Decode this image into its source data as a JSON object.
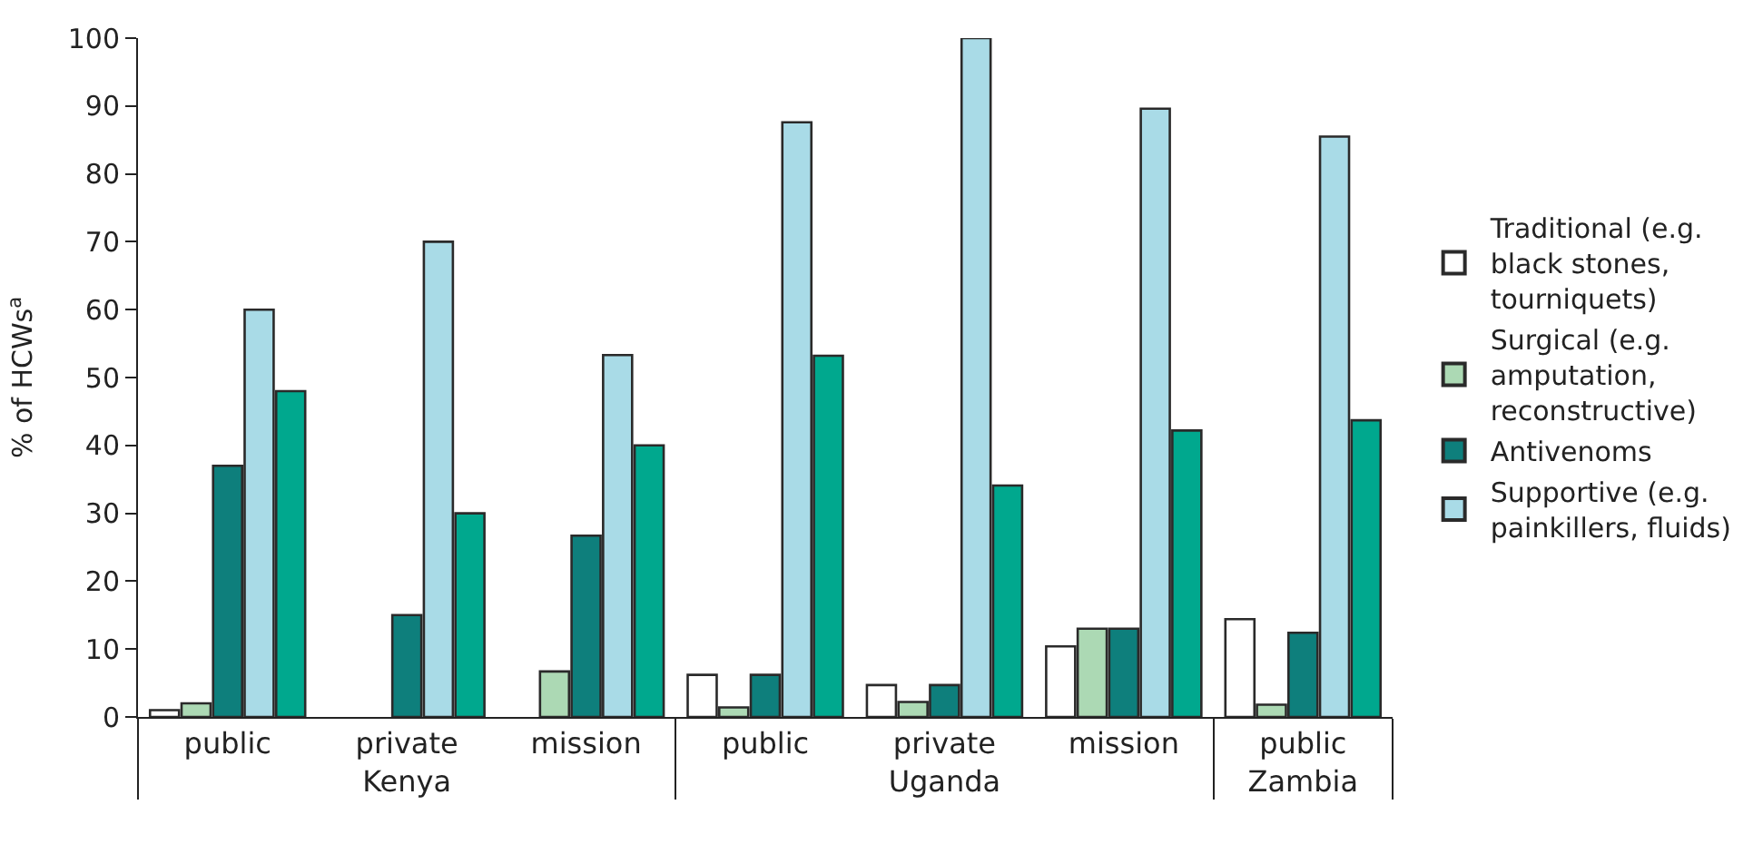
{
  "chart_data": {
    "type": "bar",
    "ylabel": "% of HCWs$^{a}$",
    "categories": [
      "public",
      "private",
      "mission",
      "public",
      "private",
      "mission",
      "public"
    ],
    "annotations": [
      "Kenya",
      "Uganda",
      "Zambia"
    ],
    "series": [
      {
        "name": "Traditional (e.g. black stones, tourniquets)",
        "color": "#ffffff",
        "values": [
          1,
          null,
          null,
          6.2,
          4.7,
          10.4,
          14.4
        ]
      },
      {
        "name": "Surgical (e.g. amputation, reconstructive)",
        "color": "#acd9b4",
        "values": [
          2,
          null,
          6.7,
          1.4,
          2.2,
          13,
          1.8
        ]
      },
      {
        "name": "Antivenoms",
        "color": "#0e7f7c",
        "values": [
          37,
          15,
          26.7,
          6.2,
          4.7,
          13,
          12.4
        ]
      },
      {
        "name": "Supportive (e.g. painkillers, fluids)",
        "color": "#a9dbe7",
        "values": [
          60,
          70,
          53.3,
          87.6,
          100,
          89.6,
          85.5
        ]
      },
      {
        "color": "#00a88e",
        "values": [
          48,
          30,
          40,
          53.2,
          34.1,
          42.2,
          43.7
        ]
      }
    ],
    "ylim": [
      0,
      100
    ],
    "yticks": [
      0,
      10,
      20,
      30,
      40,
      50,
      60,
      70,
      80,
      90,
      100
    ],
    "grid": false,
    "legend": "right"
  }
}
